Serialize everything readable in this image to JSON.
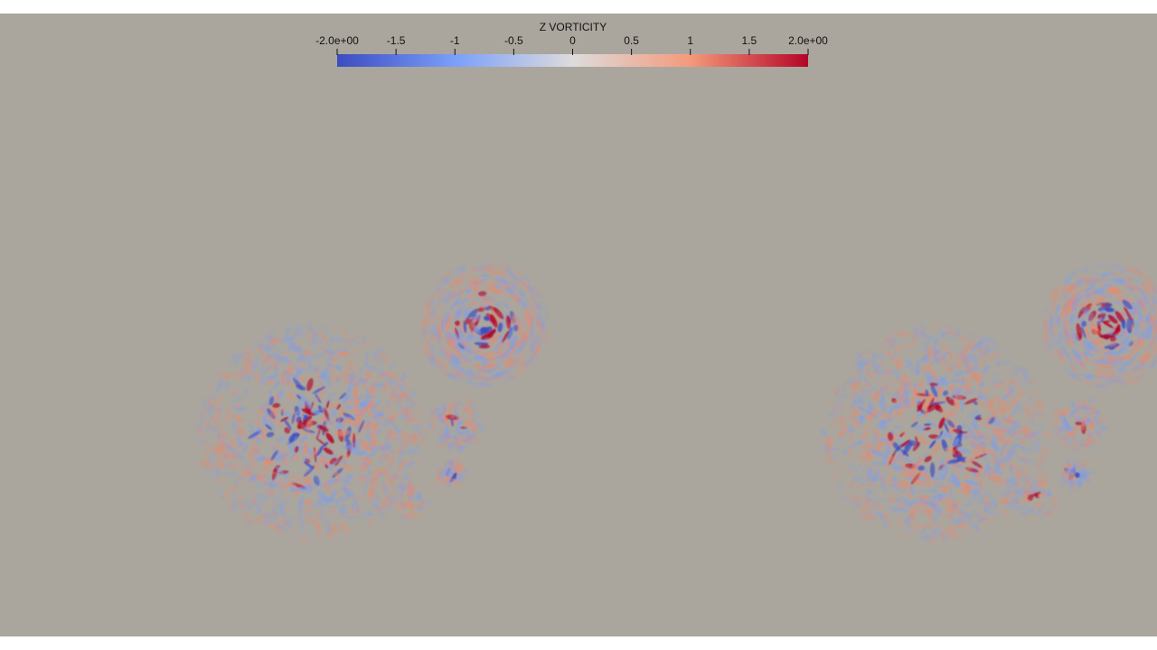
{
  "colorbar": {
    "title": "Z VORTICITY",
    "range": [
      -2,
      2
    ],
    "ticks": [
      {
        "value": -2,
        "label": "-2.0e+00"
      },
      -1.5,
      -1,
      -0.5,
      0,
      0.5,
      1,
      1.5,
      {
        "value": 2,
        "label": "2.0e+00"
      }
    ]
  }
}
